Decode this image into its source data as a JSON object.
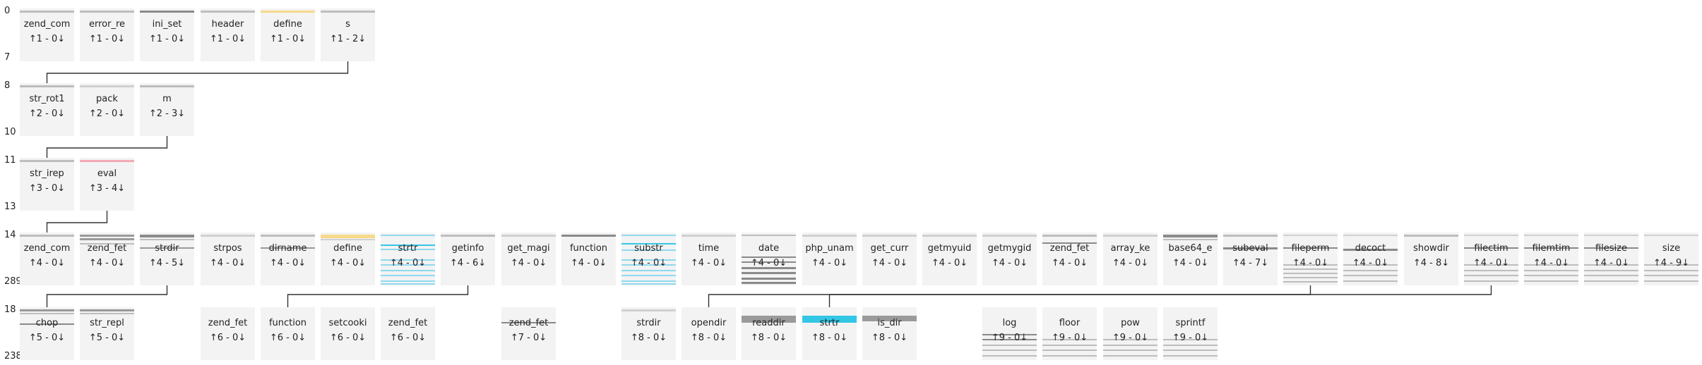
{
  "rows": [
    {
      "top_label": "0",
      "bottom_label": "7",
      "nodes": [
        {
          "name": "zend_com",
          "stats": "↑1 - 0↓",
          "hl": [
            [
              0.04,
              3,
              "#bdbdbd"
            ]
          ]
        },
        {
          "name": "error_re",
          "stats": "↑1 - 0↓",
          "hl": [
            [
              0.04,
              3,
              "#bdbdbd"
            ]
          ]
        },
        {
          "name": "ini_set",
          "stats": "↑1 - 0↓",
          "hl": [
            [
              0.04,
              3,
              "#8a8a8a"
            ]
          ]
        },
        {
          "name": "header",
          "stats": "↑1 - 0↓",
          "hl": [
            [
              0.04,
              3,
              "#bdbdbd"
            ]
          ]
        },
        {
          "name": "define",
          "stats": "↑1 - 0↓",
          "hl": [
            [
              0.04,
              3,
              "#f6d98a"
            ]
          ]
        },
        {
          "name": "s",
          "stats": "↑1 - 2↓",
          "hl": [
            [
              0.04,
              3,
              "#bdbdbd"
            ]
          ]
        }
      ]
    },
    {
      "top_label": "8",
      "bottom_label": "10",
      "nodes": [
        {
          "name": "str_rot1",
          "stats": "↑2 - 0↓",
          "hl": [
            [
              0.04,
              3,
              "#bdbdbd"
            ]
          ]
        },
        {
          "name": "pack",
          "stats": "↑2 - 0↓",
          "hl": [
            [
              0.04,
              3,
              "#d0d0d0"
            ]
          ]
        },
        {
          "name": "m",
          "stats": "↑2 - 3↓",
          "hl": [
            [
              0.04,
              3,
              "#bdbdbd"
            ]
          ]
        }
      ]
    },
    {
      "top_label": "11",
      "bottom_label": "13",
      "nodes": [
        {
          "name": "str_irep",
          "stats": "↑3 - 0↓",
          "hl": [
            [
              0.04,
              3,
              "#bdbdbd"
            ]
          ]
        },
        {
          "name": "eval",
          "stats": "↑3 - 4↓",
          "hl": [
            [
              0.04,
              3,
              "#f4a9b8"
            ]
          ]
        }
      ]
    },
    {
      "top_label": "14",
      "bottom_label": "289",
      "nodes": [
        {
          "name": "zend_com",
          "stats": "↑4 - 0↓",
          "hl": [
            [
              0.04,
              3,
              "#bdbdbd"
            ]
          ]
        },
        {
          "name": "zend_fet",
          "stats": "↑4 - 0↓",
          "hl": [
            [
              0.04,
              3,
              "#9a9a9a"
            ],
            [
              0.1,
              3,
              "#9a9a9a"
            ],
            [
              0.2,
              2,
              "#bdbdbd"
            ]
          ]
        },
        {
          "name": "strdir",
          "stats": "↑4 - 5↓",
          "hl": [
            [
              0.04,
              4,
              "#8a8a8a"
            ],
            [
              0.12,
              2,
              "#bdbdbd"
            ],
            [
              0.28,
              2,
              "#9a9a9a"
            ]
          ]
        },
        {
          "name": "strpos",
          "stats": "↑4 - 0↓",
          "hl": [
            [
              0.04,
              3,
              "#d0d0d0"
            ]
          ]
        },
        {
          "name": "dirname",
          "stats": "↑4 - 0↓",
          "hl": [
            [
              0.04,
              3,
              "#bdbdbd"
            ],
            [
              0.28,
              2,
              "#9a9a9a"
            ]
          ]
        },
        {
          "name": "define",
          "stats": "↑4 - 0↓",
          "hl": [
            [
              0.04,
              5,
              "#f6d98a"
            ],
            [
              0.12,
              2,
              "#d0d0d0"
            ]
          ]
        },
        {
          "name": "strtr",
          "stats": "↑4 - 0↓",
          "hl": [
            [
              0.04,
              2,
              "#8fd9ef"
            ],
            [
              0.22,
              2,
              "#33c7e6"
            ],
            [
              0.3,
              2,
              "#8fd9ef"
            ],
            [
              0.5,
              2,
              "#8fd9ef"
            ],
            [
              0.6,
              2,
              "#8fd9ef"
            ],
            [
              0.7,
              2,
              "#8fd9ef"
            ],
            [
              0.8,
              2,
              "#8fd9ef"
            ],
            [
              0.9,
              2,
              "#8fd9ef"
            ],
            [
              0.96,
              2,
              "#8fd9ef"
            ]
          ]
        },
        {
          "name": "getinfo",
          "stats": "↑4 - 6↓",
          "hl": [
            [
              0.04,
              3,
              "#bdbdbd"
            ]
          ]
        },
        {
          "name": "get_magi",
          "stats": "↑4 - 0↓",
          "hl": [
            [
              0.04,
              3,
              "#d0d0d0"
            ]
          ]
        },
        {
          "name": "function",
          "stats": "↑4 - 0↓",
          "hl": [
            [
              0.04,
              3,
              "#8a8a8a"
            ]
          ]
        },
        {
          "name": "substr",
          "stats": "↑4 - 0↓",
          "hl": [
            [
              0.04,
              2,
              "#8fd9ef"
            ],
            [
              0.2,
              2,
              "#33c7e6"
            ],
            [
              0.32,
              2,
              "#8fd9ef"
            ],
            [
              0.5,
              2,
              "#8fd9ef"
            ],
            [
              0.6,
              2,
              "#8fd9ef"
            ],
            [
              0.7,
              2,
              "#8fd9ef"
            ],
            [
              0.8,
              2,
              "#8fd9ef"
            ],
            [
              0.9,
              2,
              "#8fd9ef"
            ],
            [
              0.96,
              2,
              "#8fd9ef"
            ]
          ]
        },
        {
          "name": "time",
          "stats": "↑4 - 0↓",
          "hl": [
            [
              0.04,
              3,
              "#d0d0d0"
            ]
          ]
        },
        {
          "name": "date",
          "stats": "↑4 - 0↓",
          "hl": [
            [
              0.04,
              2,
              "#bdbdbd"
            ],
            [
              0.45,
              2,
              "#8a8a8a"
            ],
            [
              0.55,
              2,
              "#8a8a8a"
            ],
            [
              0.65,
              3,
              "#8a8a8a"
            ],
            [
              0.75,
              3,
              "#8a8a8a"
            ],
            [
              0.85,
              3,
              "#8a8a8a"
            ],
            [
              0.93,
              3,
              "#8a8a8a"
            ]
          ]
        },
        {
          "name": "php_unam",
          "stats": "↑4 - 0↓",
          "hl": [
            [
              0.04,
              3,
              "#d0d0d0"
            ]
          ]
        },
        {
          "name": "get_curr",
          "stats": "↑4 - 0↓",
          "hl": [
            [
              0.04,
              3,
              "#d0d0d0"
            ]
          ]
        },
        {
          "name": "getmyuid",
          "stats": "↑4 - 0↓",
          "hl": [
            [
              0.04,
              3,
              "#d0d0d0"
            ]
          ]
        },
        {
          "name": "getmygid",
          "stats": "↑4 - 0↓",
          "hl": [
            [
              0.04,
              3,
              "#d0d0d0"
            ]
          ]
        },
        {
          "name": "zend_fet",
          "stats": "↑4 - 0↓",
          "hl": [
            [
              0.04,
              3,
              "#bdbdbd"
            ],
            [
              0.18,
              2,
              "#8a8a8a"
            ]
          ]
        },
        {
          "name": "array_ke",
          "stats": "↑4 - 0↓",
          "hl": [
            [
              0.04,
              3,
              "#d0d0d0"
            ]
          ]
        },
        {
          "name": "base64_e",
          "stats": "↑4 - 0↓",
          "hl": [
            [
              0.04,
              4,
              "#8a8a8a"
            ],
            [
              0.12,
              2,
              "#bdbdbd"
            ]
          ]
        },
        {
          "name": "subeval",
          "stats": "↑4 - 7↓",
          "hl": [
            [
              0.04,
              3,
              "#bdbdbd"
            ],
            [
              0.28,
              3,
              "#8a8a8a"
            ]
          ]
        },
        {
          "name": "fileperm",
          "stats": "↑4 - 0↓",
          "hl": [
            [
              0.04,
              2,
              "#d0d0d0"
            ],
            [
              0.28,
              2,
              "#8a8a8a"
            ],
            [
              0.6,
              2,
              "#bdbdbd"
            ],
            [
              0.68,
              2,
              "#bdbdbd"
            ],
            [
              0.76,
              2,
              "#bdbdbd"
            ],
            [
              0.84,
              2,
              "#bdbdbd"
            ],
            [
              0.92,
              2,
              "#bdbdbd"
            ]
          ]
        },
        {
          "name": "decoct",
          "stats": "↑4 - 0↓",
          "hl": [
            [
              0.04,
              2,
              "#d0d0d0"
            ],
            [
              0.3,
              3,
              "#8a8a8a"
            ],
            [
              0.6,
              2,
              "#bdbdbd"
            ],
            [
              0.7,
              2,
              "#bdbdbd"
            ],
            [
              0.8,
              2,
              "#bdbdbd"
            ],
            [
              0.9,
              2,
              "#bdbdbd"
            ]
          ]
        },
        {
          "name": "showdir",
          "stats": "↑4 - 8↓",
          "hl": [
            [
              0.04,
              3,
              "#bdbdbd"
            ]
          ]
        },
        {
          "name": "filectim",
          "stats": "↑4 - 0↓",
          "hl": [
            [
              0.04,
              2,
              "#d0d0d0"
            ],
            [
              0.28,
              2,
              "#8a8a8a"
            ],
            [
              0.6,
              2,
              "#bdbdbd"
            ],
            [
              0.7,
              2,
              "#bdbdbd"
            ],
            [
              0.8,
              2,
              "#bdbdbd"
            ],
            [
              0.9,
              2,
              "#bdbdbd"
            ]
          ]
        },
        {
          "name": "filemtim",
          "stats": "↑4 - 0↓",
          "hl": [
            [
              0.04,
              2,
              "#d0d0d0"
            ],
            [
              0.28,
              2,
              "#8a8a8a"
            ],
            [
              0.6,
              2,
              "#bdbdbd"
            ],
            [
              0.7,
              2,
              "#bdbdbd"
            ],
            [
              0.8,
              2,
              "#bdbdbd"
            ],
            [
              0.9,
              2,
              "#bdbdbd"
            ]
          ]
        },
        {
          "name": "filesize",
          "stats": "↑4 - 0↓",
          "hl": [
            [
              0.04,
              2,
              "#d0d0d0"
            ],
            [
              0.28,
              2,
              "#8a8a8a"
            ],
            [
              0.6,
              2,
              "#bdbdbd"
            ],
            [
              0.7,
              2,
              "#bdbdbd"
            ],
            [
              0.8,
              2,
              "#bdbdbd"
            ],
            [
              0.9,
              2,
              "#bdbdbd"
            ]
          ]
        },
        {
          "name": "size",
          "stats": "↑4 - 9↓",
          "hl": [
            [
              0.04,
              2,
              "#d0d0d0"
            ],
            [
              0.6,
              2,
              "#bdbdbd"
            ],
            [
              0.7,
              2,
              "#bdbdbd"
            ],
            [
              0.8,
              2,
              "#bdbdbd"
            ],
            [
              0.9,
              2,
              "#bdbdbd"
            ]
          ]
        }
      ]
    },
    {
      "top_label": "18",
      "bottom_label": "238",
      "nodes": [
        {
          "slot": 0,
          "name": "chop",
          "stats": "↑5 - 0↓",
          "hl": [
            [
              0.04,
              3,
              "#9a9a9a"
            ],
            [
              0.1,
              2,
              "#bdbdbd"
            ],
            [
              0.3,
              2,
              "#8a8a8a"
            ]
          ]
        },
        {
          "slot": 1,
          "name": "str_repl",
          "stats": "↑5 - 0↓",
          "hl": [
            [
              0.04,
              3,
              "#9a9a9a"
            ],
            [
              0.1,
              2,
              "#bdbdbd"
            ]
          ]
        },
        {
          "slot": 3,
          "name": "zend_fet",
          "stats": "↑6 - 0↓",
          "hl": []
        },
        {
          "slot": 4,
          "name": "function",
          "stats": "↑6 - 0↓",
          "hl": []
        },
        {
          "slot": 5,
          "name": "setcooki",
          "stats": "↑6 - 0↓",
          "hl": []
        },
        {
          "slot": 6,
          "name": "zend_fet",
          "stats": "↑6 - 0↓",
          "hl": []
        },
        {
          "slot": 8,
          "name": "zend_fet",
          "stats": "↑7 - 0↓",
          "hl": [
            [
              0.28,
              2,
              "#8a8a8a"
            ]
          ]
        },
        {
          "slot": 10,
          "name": "strdir",
          "stats": "↑8 - 0↓",
          "hl": [
            [
              0.04,
              3,
              "#d0d0d0"
            ]
          ]
        },
        {
          "slot": 11,
          "name": "opendir",
          "stats": "↑8 - 0↓",
          "hl": []
        },
        {
          "slot": 12,
          "name": "readdir",
          "stats": "↑8 - 0↓",
          "hl": [
            [
              0.16,
              10,
              "#9a9a9a"
            ]
          ]
        },
        {
          "slot": 13,
          "name": "strtr",
          "stats": "↑8 - 0↓",
          "hl": [
            [
              0.16,
              10,
              "#33c7e6"
            ]
          ]
        },
        {
          "slot": 14,
          "name": "is_dir",
          "stats": "↑8 - 0↓",
          "hl": [
            [
              0.16,
              8,
              "#9a9a9a"
            ]
          ]
        },
        {
          "slot": 16,
          "name": "log",
          "stats": "↑9 - 0↓",
          "hl": [
            [
              0.5,
              2,
              "#8a8a8a"
            ],
            [
              0.6,
              2,
              "#8a8a8a"
            ],
            [
              0.7,
              2,
              "#bdbdbd"
            ],
            [
              0.8,
              2,
              "#bdbdbd"
            ],
            [
              0.9,
              2,
              "#bdbdbd"
            ]
          ]
        },
        {
          "slot": 17,
          "name": "floor",
          "stats": "↑9 - 0↓",
          "hl": [
            [
              0.6,
              2,
              "#bdbdbd"
            ],
            [
              0.7,
              2,
              "#bdbdbd"
            ],
            [
              0.8,
              2,
              "#bdbdbd"
            ],
            [
              0.9,
              2,
              "#bdbdbd"
            ]
          ]
        },
        {
          "slot": 18,
          "name": "pow",
          "stats": "↑9 - 0↓",
          "hl": [
            [
              0.6,
              2,
              "#bdbdbd"
            ],
            [
              0.7,
              2,
              "#bdbdbd"
            ],
            [
              0.8,
              2,
              "#bdbdbd"
            ],
            [
              0.9,
              2,
              "#bdbdbd"
            ]
          ]
        },
        {
          "slot": 19,
          "name": "sprintf",
          "stats": "↑9 - 0↓",
          "hl": [
            [
              0.6,
              2,
              "#bdbdbd"
            ],
            [
              0.7,
              2,
              "#bdbdbd"
            ],
            [
              0.8,
              2,
              "#bdbdbd"
            ],
            [
              0.9,
              2,
              "#bdbdbd"
            ]
          ]
        }
      ]
    }
  ],
  "links": [
    {
      "from": [
        0,
        5
      ],
      "to": [
        1,
        0
      ]
    },
    {
      "from": [
        1,
        2
      ],
      "to": [
        2,
        0
      ]
    },
    {
      "from": [
        2,
        1
      ],
      "to": [
        3,
        0
      ]
    },
    {
      "from": [
        3,
        2
      ],
      "to": [
        4,
        0
      ]
    },
    {
      "from": [
        3,
        7
      ],
      "to": [
        4,
        3
      ]
    },
    {
      "from": [
        3,
        21
      ],
      "to": [
        4,
        8
      ]
    },
    {
      "from": [
        3,
        24
      ],
      "to": [
        4,
        10
      ]
    },
    {
      "from": [
        3,
        27
      ],
      "to": [
        4,
        16
      ]
    }
  ]
}
